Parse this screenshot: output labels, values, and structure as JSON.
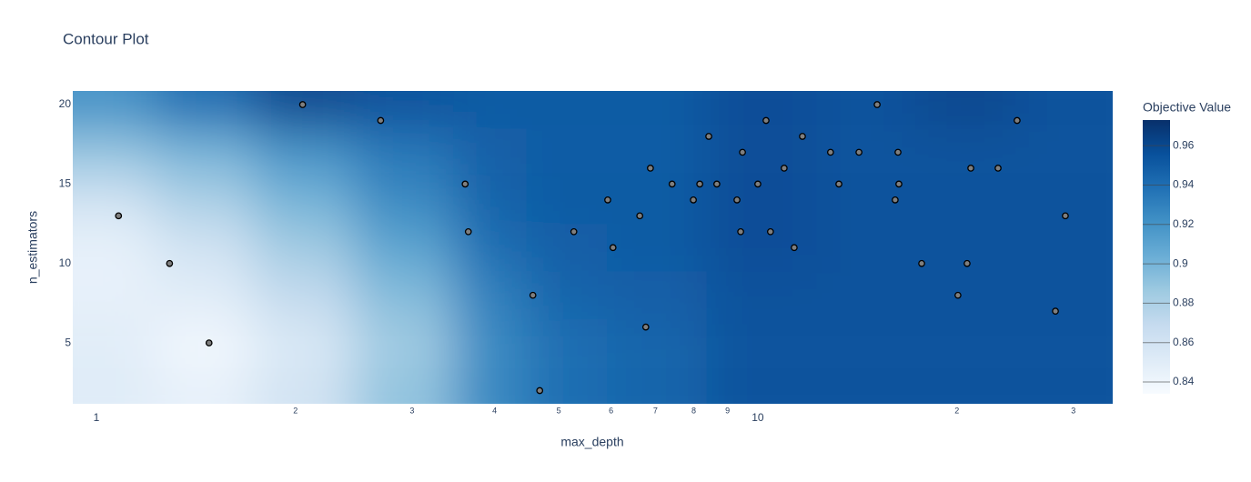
{
  "chart_data": {
    "type": "contour",
    "title": "Contour Plot",
    "x_label": "max_depth",
    "y_label": "n_estimators",
    "colorbar_title": "Objective Value",
    "x_log": true,
    "xlim": [
      0.921,
      34.4
    ],
    "ylim": [
      1.17,
      20.86
    ],
    "xticks": [
      1,
      2,
      3,
      4,
      5,
      6,
      7,
      8,
      9,
      10,
      {
        "value": 20,
        "label": "2"
      },
      {
        "value": 30,
        "label": "3"
      }
    ],
    "yticks": [
      5,
      10,
      15,
      20
    ],
    "zlim": [
      0.834,
      0.973
    ],
    "zticks": [
      0.84,
      0.86,
      0.88,
      0.9,
      0.92,
      0.94,
      0.96
    ],
    "colorscale": [
      "#f7fbff",
      "#deebf7",
      "#c6dbef",
      "#9ecae1",
      "#6baed6",
      "#4292c6",
      "#2171b5",
      "#08519c",
      "#08306b"
    ],
    "grid_x": [
      1,
      1.5,
      2,
      3,
      4,
      5,
      7,
      10,
      15,
      20,
      30
    ],
    "grid_y": [
      2,
      5,
      8,
      11,
      14,
      17,
      20
    ],
    "z": [
      [
        0.85,
        0.845,
        0.86,
        0.89,
        0.925,
        0.94,
        0.945,
        0.955,
        0.955,
        0.955,
        0.955
      ],
      [
        0.85,
        0.838,
        0.855,
        0.885,
        0.925,
        0.94,
        0.945,
        0.955,
        0.955,
        0.955,
        0.955
      ],
      [
        0.845,
        0.85,
        0.87,
        0.895,
        0.93,
        0.945,
        0.948,
        0.955,
        0.955,
        0.955,
        0.955
      ],
      [
        0.845,
        0.86,
        0.885,
        0.91,
        0.94,
        0.948,
        0.95,
        0.957,
        0.955,
        0.955,
        0.955
      ],
      [
        0.86,
        0.88,
        0.9,
        0.925,
        0.945,
        0.95,
        0.95,
        0.957,
        0.955,
        0.955,
        0.955
      ],
      [
        0.89,
        0.9,
        0.92,
        0.935,
        0.948,
        0.95,
        0.95,
        0.957,
        0.955,
        0.955,
        0.955
      ],
      [
        0.92,
        0.94,
        0.96,
        0.955,
        0.95,
        0.95,
        0.95,
        0.957,
        0.955,
        0.96,
        0.955
      ]
    ],
    "points": {
      "color": "#7f7f7f",
      "x": [
        2.05,
        2.69,
        3.61,
        3.65,
        1.08,
        1.29,
        1.48,
        4.57,
        4.68,
        5.27,
        5.93,
        6.04,
        6.63,
        6.77,
        6.88,
        7.42,
        7.99,
        8.17,
        8.43,
        8.67,
        9.3,
        9.42,
        9.48,
        10,
        10.29,
        10.45,
        10.96,
        11.35,
        11.68,
        12.88,
        13.26,
        14.22,
        15.15,
        16.13,
        16.29,
        16.34,
        17.69,
        20.07,
        20.72,
        20.99,
        23.08,
        24.66,
        28.18,
        29.17
      ],
      "y": [
        20,
        19,
        15,
        12,
        13,
        10,
        5,
        8,
        2,
        12,
        14,
        11,
        13,
        6,
        16,
        15,
        14,
        15,
        18,
        15,
        14,
        12,
        17,
        15,
        19,
        12,
        16,
        11,
        18,
        17,
        15,
        17,
        20,
        14,
        17,
        15,
        10,
        8,
        10,
        16,
        16,
        19,
        7,
        13
      ]
    }
  }
}
